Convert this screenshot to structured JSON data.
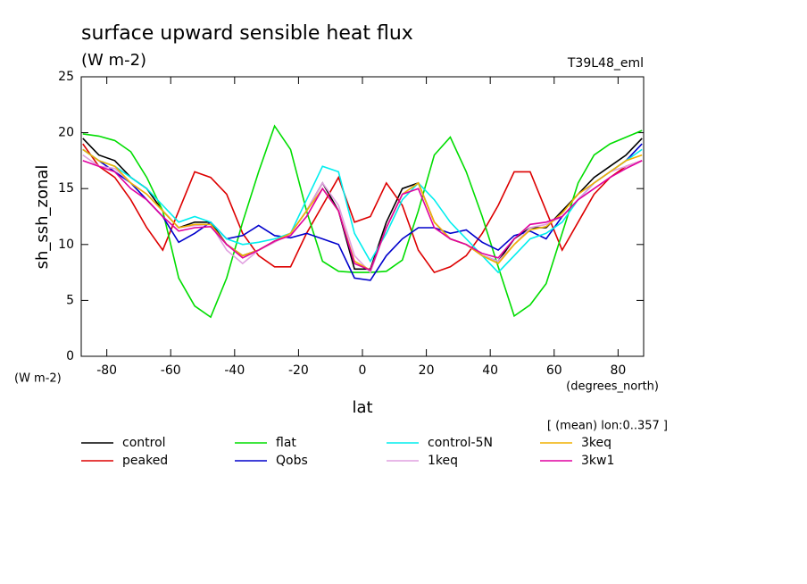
{
  "chart_data": {
    "type": "line",
    "title": "surface upward sensible heat flux",
    "subtitle": "(W m-2)",
    "annotation": "T39L48_eml",
    "y_label": "sh_ssh_zonal",
    "y_units": "(W m-2)",
    "x_label": "lat",
    "x_units": "(degrees_north)",
    "note": "[ (mean) lon:0..357 ]",
    "x": [
      -87.5,
      -82.5,
      -77.5,
      -72.5,
      -67.5,
      -62.5,
      -57.5,
      -52.5,
      -47.5,
      -42.5,
      -37.5,
      -32.5,
      -27.5,
      -22.5,
      -17.5,
      -12.5,
      -7.5,
      -2.5,
      2.5,
      7.5,
      12.5,
      17.5,
      22.5,
      27.5,
      32.5,
      37.5,
      42.5,
      47.5,
      52.5,
      57.5,
      62.5,
      67.5,
      72.5,
      77.5,
      82.5,
      87.5
    ],
    "series": [
      {
        "name": "control",
        "color": "#000000",
        "values": [
          19.5,
          18,
          17.5,
          16,
          15,
          13,
          11.5,
          12,
          12,
          10,
          9,
          9.5,
          10.3,
          11,
          13,
          15.5,
          13,
          7.8,
          7.8,
          12,
          15,
          15.5,
          12,
          10.5,
          10,
          9,
          8.5,
          10.5,
          11.5,
          11.5,
          13,
          14.5,
          16,
          17,
          18,
          19.5
        ]
      },
      {
        "name": "peaked",
        "color": "#dd0000",
        "values": [
          19,
          17,
          16,
          14,
          11.5,
          9.5,
          13,
          16.5,
          16,
          14.5,
          11,
          9,
          8,
          8,
          11,
          13.5,
          16,
          12,
          12.5,
          15.5,
          13.5,
          9.5,
          7.5,
          8,
          9,
          11,
          13.5,
          16.5,
          16.5,
          13,
          9.5,
          12,
          14.5,
          16,
          17,
          17.5
        ]
      },
      {
        "name": "flat",
        "color": "#00dd00",
        "values": [
          19.9,
          19.7,
          19.3,
          18.3,
          16,
          13,
          7,
          4.5,
          3.5,
          7,
          12,
          16.5,
          20.6,
          18.5,
          13,
          8.5,
          7.6,
          7.5,
          7.5,
          7.6,
          8.6,
          13,
          18,
          19.6,
          16.5,
          12.5,
          8,
          3.6,
          4.6,
          6.5,
          11,
          15.5,
          18,
          19,
          19.6,
          20.2
        ]
      },
      {
        "name": "Qobs",
        "color": "#0000cc",
        "values": [
          18.5,
          17.5,
          16.5,
          15.5,
          14,
          12.5,
          10.2,
          11,
          12,
          10.5,
          10.8,
          11.7,
          10.8,
          10.6,
          11,
          10.5,
          10,
          7,
          6.8,
          9,
          10.5,
          11.5,
          11.5,
          11,
          11.3,
          10.2,
          9.5,
          10.8,
          11.2,
          10.5,
          12.5,
          14,
          15.5,
          16.5,
          17.5,
          19
        ]
      },
      {
        "name": "control-5N",
        "color": "#00eeee",
        "values": [
          18.5,
          17.5,
          17,
          16,
          15,
          13.5,
          12,
          12.5,
          12,
          10.5,
          10,
          10.2,
          10.5,
          11,
          14,
          17,
          16.5,
          11,
          8.5,
          11,
          14,
          15.5,
          14,
          12,
          10.5,
          9,
          7.5,
          9,
          10.5,
          11,
          12,
          14,
          15.5,
          16.5,
          17.5,
          18.5
        ]
      },
      {
        "name": "1keq",
        "color": "#e0a0e0",
        "values": [
          18,
          17,
          16.8,
          15.5,
          14.5,
          13,
          11.5,
          11.7,
          11.8,
          9.5,
          8.3,
          9.5,
          10.2,
          11,
          13,
          15.5,
          13.5,
          9,
          7.5,
          11.5,
          14.5,
          15.5,
          12,
          10.5,
          10,
          9,
          8.5,
          10,
          11.5,
          11.8,
          12.5,
          14,
          15.5,
          16.5,
          17,
          17.5
        ]
      },
      {
        "name": "3keq",
        "color": "#f0b000",
        "values": [
          18.5,
          17.5,
          17,
          15.5,
          14.5,
          13,
          11.5,
          11.8,
          11.8,
          10,
          9,
          9.5,
          10.3,
          11,
          13,
          15,
          13,
          8.5,
          7.7,
          11.5,
          14.5,
          15.5,
          12,
          10.5,
          10,
          9,
          8.3,
          10,
          11.3,
          11.6,
          12.8,
          14.5,
          15.5,
          16.5,
          17.5,
          18
        ]
      },
      {
        "name": "3kw1",
        "color": "#e000a0",
        "values": [
          17.5,
          17,
          16.5,
          15,
          14,
          12.5,
          11.2,
          11.5,
          11.6,
          10,
          8.8,
          9.5,
          10.3,
          10.8,
          12.5,
          15,
          13,
          8.3,
          7.7,
          11.5,
          14.5,
          15,
          11.5,
          10.5,
          10,
          9.2,
          8.8,
          10.5,
          11.8,
          12,
          12.5,
          14,
          15,
          16,
          16.8,
          17.5
        ]
      }
    ],
    "xlim": [
      -88,
      88
    ],
    "ylim": [
      0,
      25
    ],
    "xticks": [
      -80,
      -60,
      -40,
      -20,
      0,
      20,
      40,
      60,
      80
    ],
    "yticks": [
      0,
      5,
      10,
      15,
      20,
      25
    ]
  }
}
